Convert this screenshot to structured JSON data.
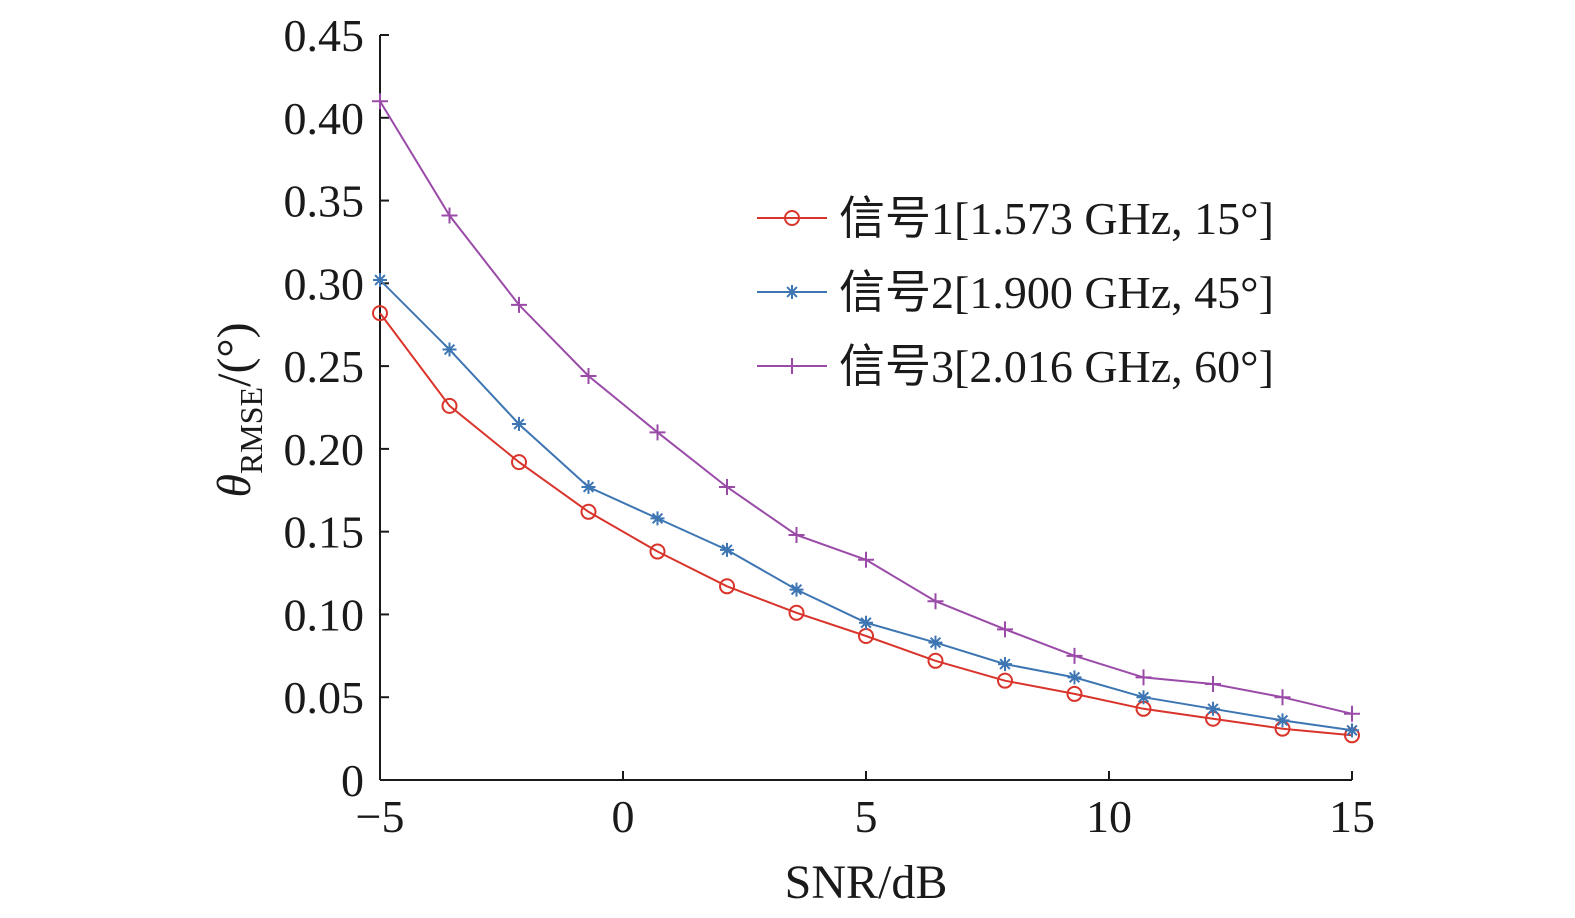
{
  "chart_data": {
    "type": "line",
    "title": "",
    "xlabel": "SNR/dB",
    "ylabel": {
      "symbol": "θ",
      "subscript": "RMSE",
      "unit": "/(°)"
    },
    "xlim": [
      -5,
      15
    ],
    "ylim": [
      0,
      0.45
    ],
    "xticks": [
      -5,
      0,
      5,
      10,
      15
    ],
    "xtick_labels": [
      "−5",
      "0",
      "5",
      "10",
      "15"
    ],
    "yticks": [
      0,
      0.05,
      0.1,
      0.15,
      0.2,
      0.25,
      0.3,
      0.35,
      0.4,
      0.45
    ],
    "ytick_labels": [
      "0",
      "0.05",
      "0.10",
      "0.15",
      "0.20",
      "0.25",
      "0.30",
      "0.35",
      "0.40",
      "0.45"
    ],
    "grid": false,
    "legend_position": "right-upper",
    "x": [
      -5,
      -3.57,
      -2.14,
      -0.71,
      0.71,
      2.14,
      3.57,
      5,
      6.43,
      7.86,
      9.29,
      10.71,
      12.14,
      13.57,
      15
    ],
    "series": [
      {
        "name": "信号1[1.573 GHz, 15°]",
        "color": "#d9342b",
        "marker": "circle",
        "values": [
          0.282,
          0.226,
          0.192,
          0.162,
          0.138,
          0.117,
          0.101,
          0.087,
          0.072,
          0.06,
          0.052,
          0.043,
          0.037,
          0.031,
          0.027
        ]
      },
      {
        "name": "信号2[1.900 GHz, 45°]",
        "color": "#3d76b2",
        "marker": "star",
        "values": [
          0.302,
          0.26,
          0.215,
          0.177,
          0.158,
          0.139,
          0.115,
          0.095,
          0.083,
          0.07,
          0.062,
          0.05,
          0.043,
          0.036,
          0.03
        ]
      },
      {
        "name": "信号3[2.016 GHz, 60°]",
        "color": "#9a4ba8",
        "marker": "plus",
        "values": [
          0.41,
          0.341,
          0.287,
          0.244,
          0.21,
          0.177,
          0.148,
          0.133,
          0.108,
          0.091,
          0.075,
          0.062,
          0.058,
          0.05,
          0.04
        ]
      }
    ]
  }
}
